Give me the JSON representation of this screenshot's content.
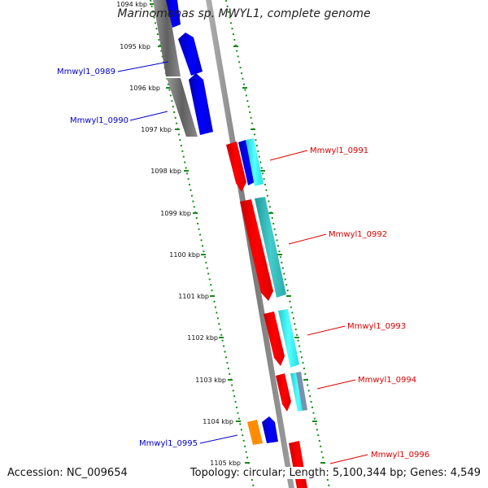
{
  "title": "Marinomonas sp. MWYL1, complete genome",
  "footer": {
    "accession": "Accession: NC_009654",
    "summary": "Topology: circular; Length: 5,100,344 bp; Genes: 4,549"
  },
  "colors": {
    "backbone": "#8a8a8a",
    "ruler": "#1a8a1a",
    "reverse_label": "#0000cc",
    "forward_label": "#dd0000",
    "red": "#ff0000",
    "blue": "#0000ee",
    "cyan": "#22e8e8",
    "teal": "#33bbbb",
    "gray": "#707070",
    "orange": "#ff8c00",
    "slate": "#7a90b0"
  },
  "ruler": {
    "ticks": [
      "1094 kbp",
      "1095 kbp",
      "1096 kbp",
      "1097 kbp",
      "1098 kbp",
      "1099 kbp",
      "1100 kbp",
      "1101 kbp",
      "1102 kbp",
      "1103 kbp",
      "1104 kbp",
      "1105 kbp"
    ]
  },
  "genes": [
    {
      "label": "Mmwyl1_0989",
      "strand": "reverse"
    },
    {
      "label": "Mmwyl1_0990",
      "strand": "reverse"
    },
    {
      "label": "Mmwyl1_0991",
      "strand": "forward"
    },
    {
      "label": "Mmwyl1_0992",
      "strand": "forward"
    },
    {
      "label": "Mmwyl1_0993",
      "strand": "forward"
    },
    {
      "label": "Mmwyl1_0994",
      "strand": "forward"
    },
    {
      "label": "Mmwyl1_0995",
      "strand": "reverse"
    },
    {
      "label": "Mmwyl1_0996",
      "strand": "forward"
    }
  ]
}
